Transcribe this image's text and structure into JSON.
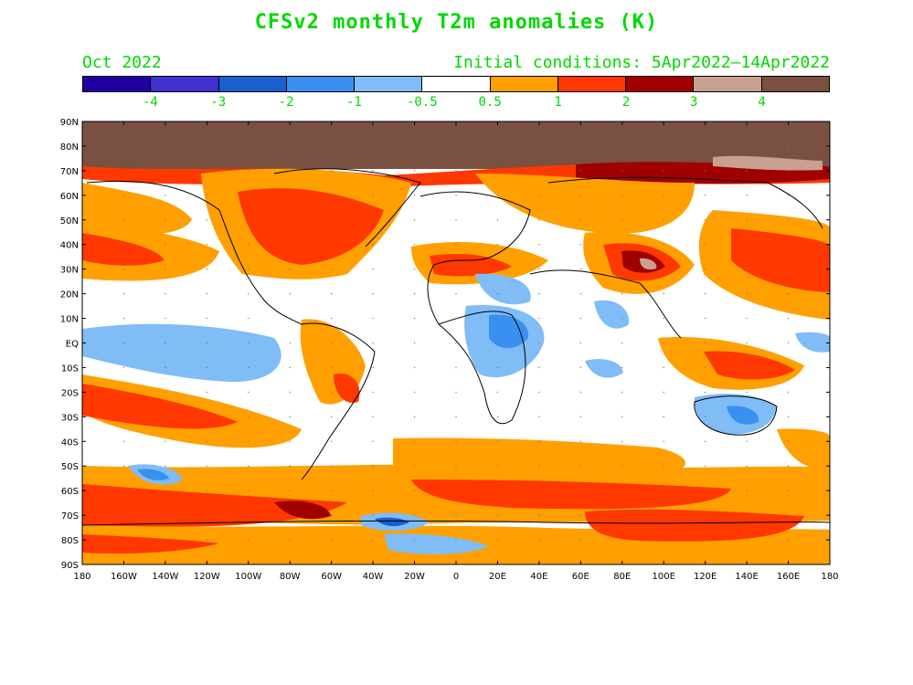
{
  "title": "CFSv2 monthly T2m anomalies (K)",
  "valid_month": "Oct 2022",
  "initial_conditions": "Initial conditions: 5Apr2022—14Apr2022",
  "colorbar": {
    "colors": [
      "#2000a0",
      "#4030d0",
      "#1a5fd0",
      "#3a90f0",
      "#80bcf6",
      "#ffffff",
      "#ffa000",
      "#ff3800",
      "#a00000",
      "#c8a090",
      "#7a5040"
    ],
    "labels": [
      "-4",
      "-3",
      "-2",
      "-1",
      "-0.5",
      "0.5",
      "1",
      "2",
      "3",
      "4"
    ]
  },
  "map": {
    "lat_labels": [
      "90N",
      "80N",
      "70N",
      "60N",
      "50N",
      "40N",
      "30N",
      "20N",
      "10N",
      "EQ",
      "10S",
      "20S",
      "30S",
      "40S",
      "50S",
      "60S",
      "70S",
      "80S",
      "90S"
    ],
    "lon_labels": [
      "180",
      "160W",
      "140W",
      "120W",
      "100W",
      "80W",
      "60W",
      "40W",
      "20W",
      "0",
      "20E",
      "40E",
      "60E",
      "80E",
      "100E",
      "120E",
      "140E",
      "160E",
      "180"
    ]
  }
}
